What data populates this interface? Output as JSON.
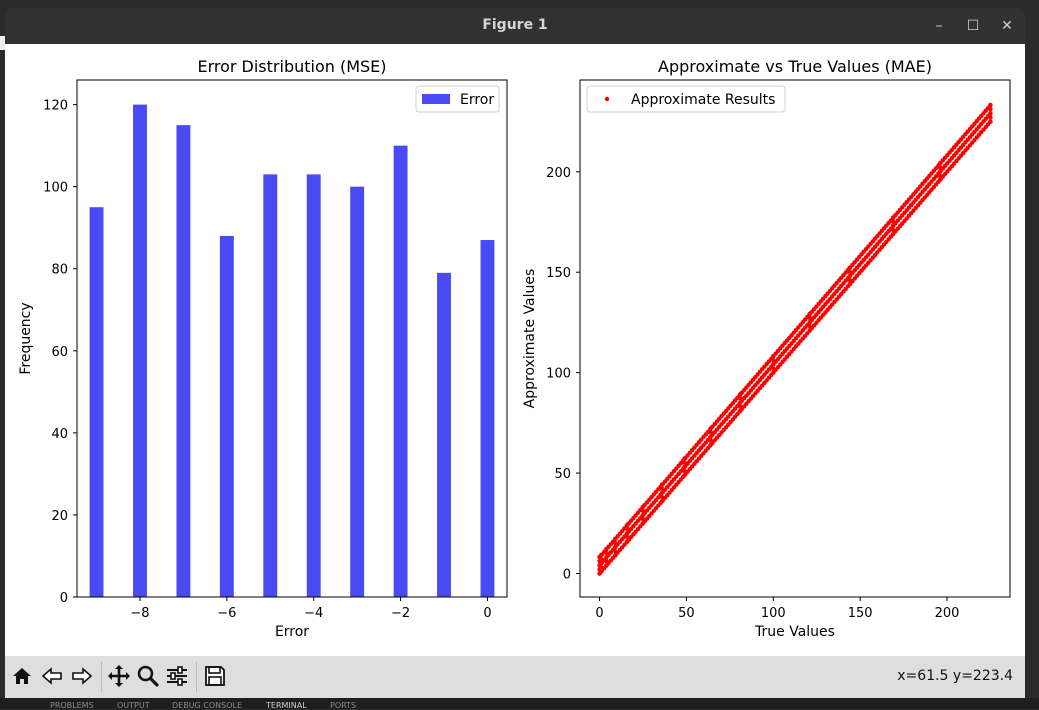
{
  "window": {
    "title": "Figure 1",
    "controls": {
      "minimize": "–",
      "maximize": "☐",
      "close": "✕"
    }
  },
  "toolbar": {
    "buttons": [
      {
        "name": "home-icon"
      },
      {
        "name": "back-arrow-icon"
      },
      {
        "name": "forward-arrow-icon"
      },
      {
        "name": "pan-move-icon"
      },
      {
        "name": "zoom-magnifier-icon"
      },
      {
        "name": "configure-subplots-icon"
      },
      {
        "name": "save-figure-icon"
      }
    ],
    "coords": "x=61.5 y=223.4"
  },
  "bottom_panel": {
    "tabs": [
      "PROBLEMS",
      "OUTPUT",
      "DEBUG CONSOLE",
      "TERMINAL",
      "PORTS"
    ]
  },
  "chart_data": [
    {
      "type": "bar",
      "title": "Error Distribution (MSE)",
      "xlabel": "Error",
      "ylabel": "Frequency",
      "legend": [
        "Error"
      ],
      "legend_position": "top-right",
      "color": "#4a4af5",
      "x": [
        -9,
        -8,
        -7,
        -6,
        -5,
        -4,
        -3,
        -2,
        -1,
        0
      ],
      "values": [
        95,
        120,
        115,
        88,
        103,
        103,
        100,
        110,
        79,
        87
      ],
      "xlim": [
        -9.45,
        0.45
      ],
      "ylim": [
        0,
        126
      ],
      "xticks": [
        -8,
        -6,
        -4,
        -2,
        0
      ],
      "xtick_labels": [
        "−8",
        "−6",
        "−4",
        "−2",
        "0"
      ],
      "yticks": [
        0,
        20,
        40,
        60,
        80,
        100,
        120
      ],
      "ytick_labels": [
        "0",
        "20",
        "40",
        "60",
        "80",
        "100",
        "120"
      ]
    },
    {
      "type": "scatter",
      "title": "Approximate vs True Values (MAE)",
      "xlabel": "True Values",
      "ylabel": "Approximate Values",
      "legend": [
        "Approximate Results"
      ],
      "legend_position": "top-left",
      "color": "#ff0000",
      "x_values": [
        0,
        1,
        4,
        9,
        16,
        25,
        36,
        49,
        64,
        81,
        100,
        121,
        144,
        169,
        196,
        225
      ],
      "max_offset": 9,
      "xlim": [
        -11.25,
        236.25
      ],
      "ylim": [
        -11.7,
        245.7
      ],
      "xticks": [
        0,
        50,
        100,
        150,
        200
      ],
      "xtick_labels": [
        "0",
        "50",
        "100",
        "150",
        "200"
      ],
      "yticks": [
        0,
        50,
        100,
        150,
        200
      ],
      "ytick_labels": [
        "0",
        "50",
        "100",
        "150",
        "200"
      ]
    }
  ]
}
